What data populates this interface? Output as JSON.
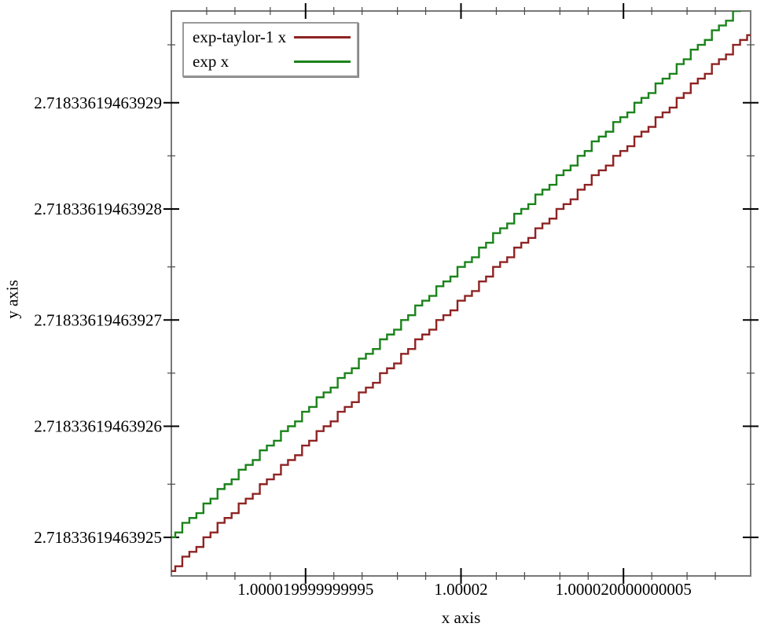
{
  "chart_data": {
    "type": "line",
    "title": "",
    "xlabel": "x axis",
    "ylabel": "y axis",
    "grid": false,
    "legend_position": "top-left",
    "x_range": [
      1.0000199999999908,
      1.000020000000009
    ],
    "y_range": [
      2.7183361946392464,
      2.7183361946392983
    ],
    "x_major_ticks": [
      {
        "value": 1.000019999999995,
        "label": "1.000019999999995"
      },
      {
        "value": 1.00002,
        "label": "1.00002"
      },
      {
        "value": 1.000020000000005,
        "label": "1.000020000000005"
      }
    ],
    "x_minor_base": 1.00002,
    "x_minor_unit": 1e-15,
    "x_minor_offsets": [
      -9,
      -8,
      -7,
      -6,
      -4,
      -3,
      -2,
      -1,
      1,
      2,
      3,
      4,
      6,
      7,
      8
    ],
    "y_major_ticks": [
      {
        "value": 2.71833619463929,
        "label": "2.71833619463929"
      },
      {
        "value": 2.71833619463928,
        "label": "2.71833619463928"
      },
      {
        "value": 2.71833619463927,
        "label": "2.71833619463927"
      },
      {
        "value": 2.71833619463926,
        "label": "2.71833619463926"
      },
      {
        "value": 2.71833619463925,
        "label": "2.71833619463925"
      }
    ],
    "y_minor_values": [
      2.718336194639295,
      2.718336194639285,
      2.718336194639275,
      2.718336194639265,
      2.718336194639255
    ],
    "x_step_ulp": 2.220446049250313e-16,
    "series": [
      {
        "name": "exp-taylor-1 x",
        "color": "#8f2323",
        "y_at_xmin": 2.718336194639247,
        "slope": 2.718281828459045
      },
      {
        "name": "exp x",
        "color": "#1a831a",
        "y_at_xmin": 2.71833619463925,
        "slope": 2.718281828459045
      }
    ],
    "frame_color": "#787878",
    "major_tick_color": "#000000",
    "minor_tick_color": "#4a4a4a"
  }
}
